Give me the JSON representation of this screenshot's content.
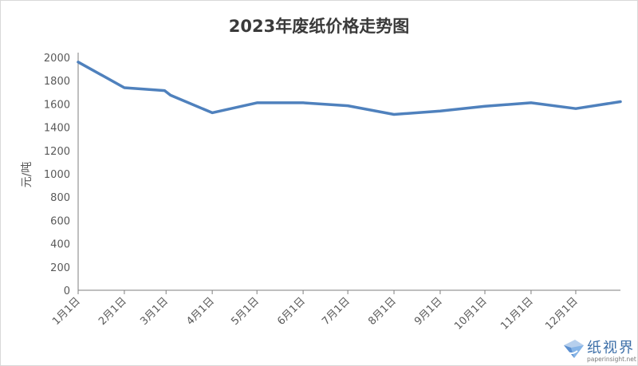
{
  "chart_data": {
    "type": "line",
    "title": "2023年废纸价格走势图",
    "xlabel": "",
    "ylabel": "元/吨",
    "ylim": [
      0,
      2000
    ],
    "yticks": [
      0,
      200,
      400,
      600,
      800,
      1000,
      1200,
      1400,
      1600,
      1800,
      2000
    ],
    "xtick_labels": [
      "1月1日",
      "2月1日",
      "3月1日",
      "4月1日",
      "5月1日",
      "6月1日",
      "7月1日",
      "8月1日",
      "9月1日",
      "10月1日",
      "11月1日",
      "12月1日"
    ],
    "grid": false,
    "legend": "none",
    "series": [
      {
        "color": "#4f81bd",
        "points": [
          {
            "x": "2023-01-01",
            "y": 1960
          },
          {
            "x": "2023-02-01",
            "y": 1740
          },
          {
            "x": "2023-02-28",
            "y": 1715
          },
          {
            "x": "2023-03-04",
            "y": 1675
          },
          {
            "x": "2023-04-01",
            "y": 1525
          },
          {
            "x": "2023-05-01",
            "y": 1610
          },
          {
            "x": "2023-06-01",
            "y": 1610
          },
          {
            "x": "2023-07-01",
            "y": 1585
          },
          {
            "x": "2023-08-01",
            "y": 1510
          },
          {
            "x": "2023-09-01",
            "y": 1540
          },
          {
            "x": "2023-10-01",
            "y": 1580
          },
          {
            "x": "2023-11-01",
            "y": 1610
          },
          {
            "x": "2023-12-01",
            "y": 1560
          },
          {
            "x": "2023-12-31",
            "y": 1620
          }
        ]
      }
    ]
  },
  "watermark": {
    "brand_name": "纸视界",
    "url": "paperinsight.net",
    "color": "#3d6fa8"
  }
}
